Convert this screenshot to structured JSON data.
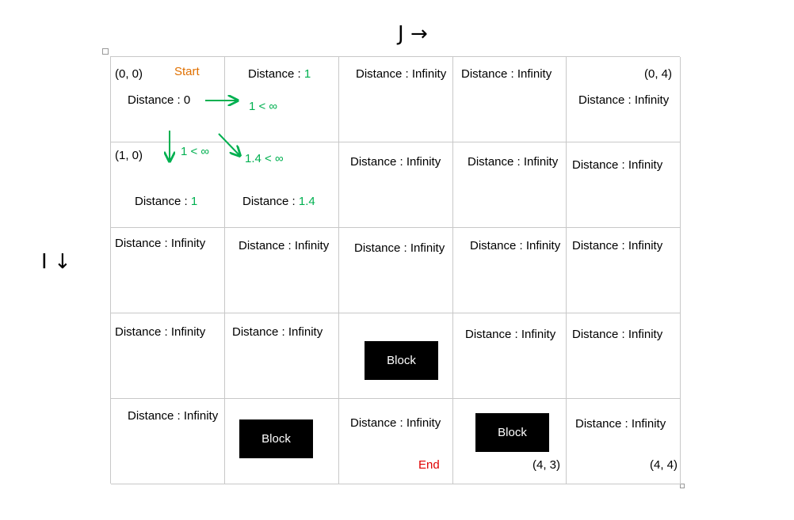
{
  "axes": {
    "j_label": "J",
    "j_arrow": "→",
    "i_label": "I",
    "i_arrow": "↓"
  },
  "cells": {
    "r0c0": {
      "coord": "(0, 0)",
      "start": "Start",
      "distance": "Distance : 0"
    },
    "r0c1": {
      "prefix": "Distance : ",
      "value": "1",
      "compare": "1 < ∞"
    },
    "r0c2": {
      "distance": "Distance : Infinity"
    },
    "r0c3": {
      "distance": "Distance : Infinity"
    },
    "r0c4": {
      "coord": "(0, 4)",
      "distance": "Distance : Infinity"
    },
    "r1c0": {
      "coord": "(1, 0)",
      "compare": "1 < ∞",
      "prefix": "Distance : ",
      "value": "1"
    },
    "r1c1": {
      "compare": "1.4 < ∞",
      "prefix": "Distance : ",
      "value": "1.4"
    },
    "r1c2": {
      "distance": "Distance : Infinity"
    },
    "r1c3": {
      "distance": "Distance : Infinity"
    },
    "r1c4": {
      "distance": "Distance : Infinity"
    },
    "r2c0": {
      "distance": "Distance : Infinity"
    },
    "r2c1": {
      "distance": "Distance : Infinity"
    },
    "r2c2": {
      "distance": "Distance : Infinity"
    },
    "r2c3": {
      "distance": "Distance : Infinity"
    },
    "r2c4": {
      "distance": "Distance : Infinity"
    },
    "r3c0": {
      "distance": "Distance : Infinity"
    },
    "r3c1": {
      "distance": "Distance : Infinity"
    },
    "r3c2": {
      "block": "Block"
    },
    "r3c3": {
      "distance": "Distance : Infinity"
    },
    "r3c4": {
      "distance": "Distance : Infinity"
    },
    "r4c0": {
      "distance": "Distance : Infinity"
    },
    "r4c1": {
      "block": "Block"
    },
    "r4c2": {
      "distance": "Distance : Infinity",
      "end": "End"
    },
    "r4c3": {
      "block": "Block",
      "coord": "(4, 3)"
    },
    "r4c4": {
      "distance": "Distance : Infinity",
      "coord": "(4, 4)"
    }
  },
  "colors": {
    "update_green": "#00b050",
    "start_orange": "#e07000",
    "end_red": "#e00000",
    "block_black": "#000000",
    "grid_line": "#c8c8c8"
  }
}
